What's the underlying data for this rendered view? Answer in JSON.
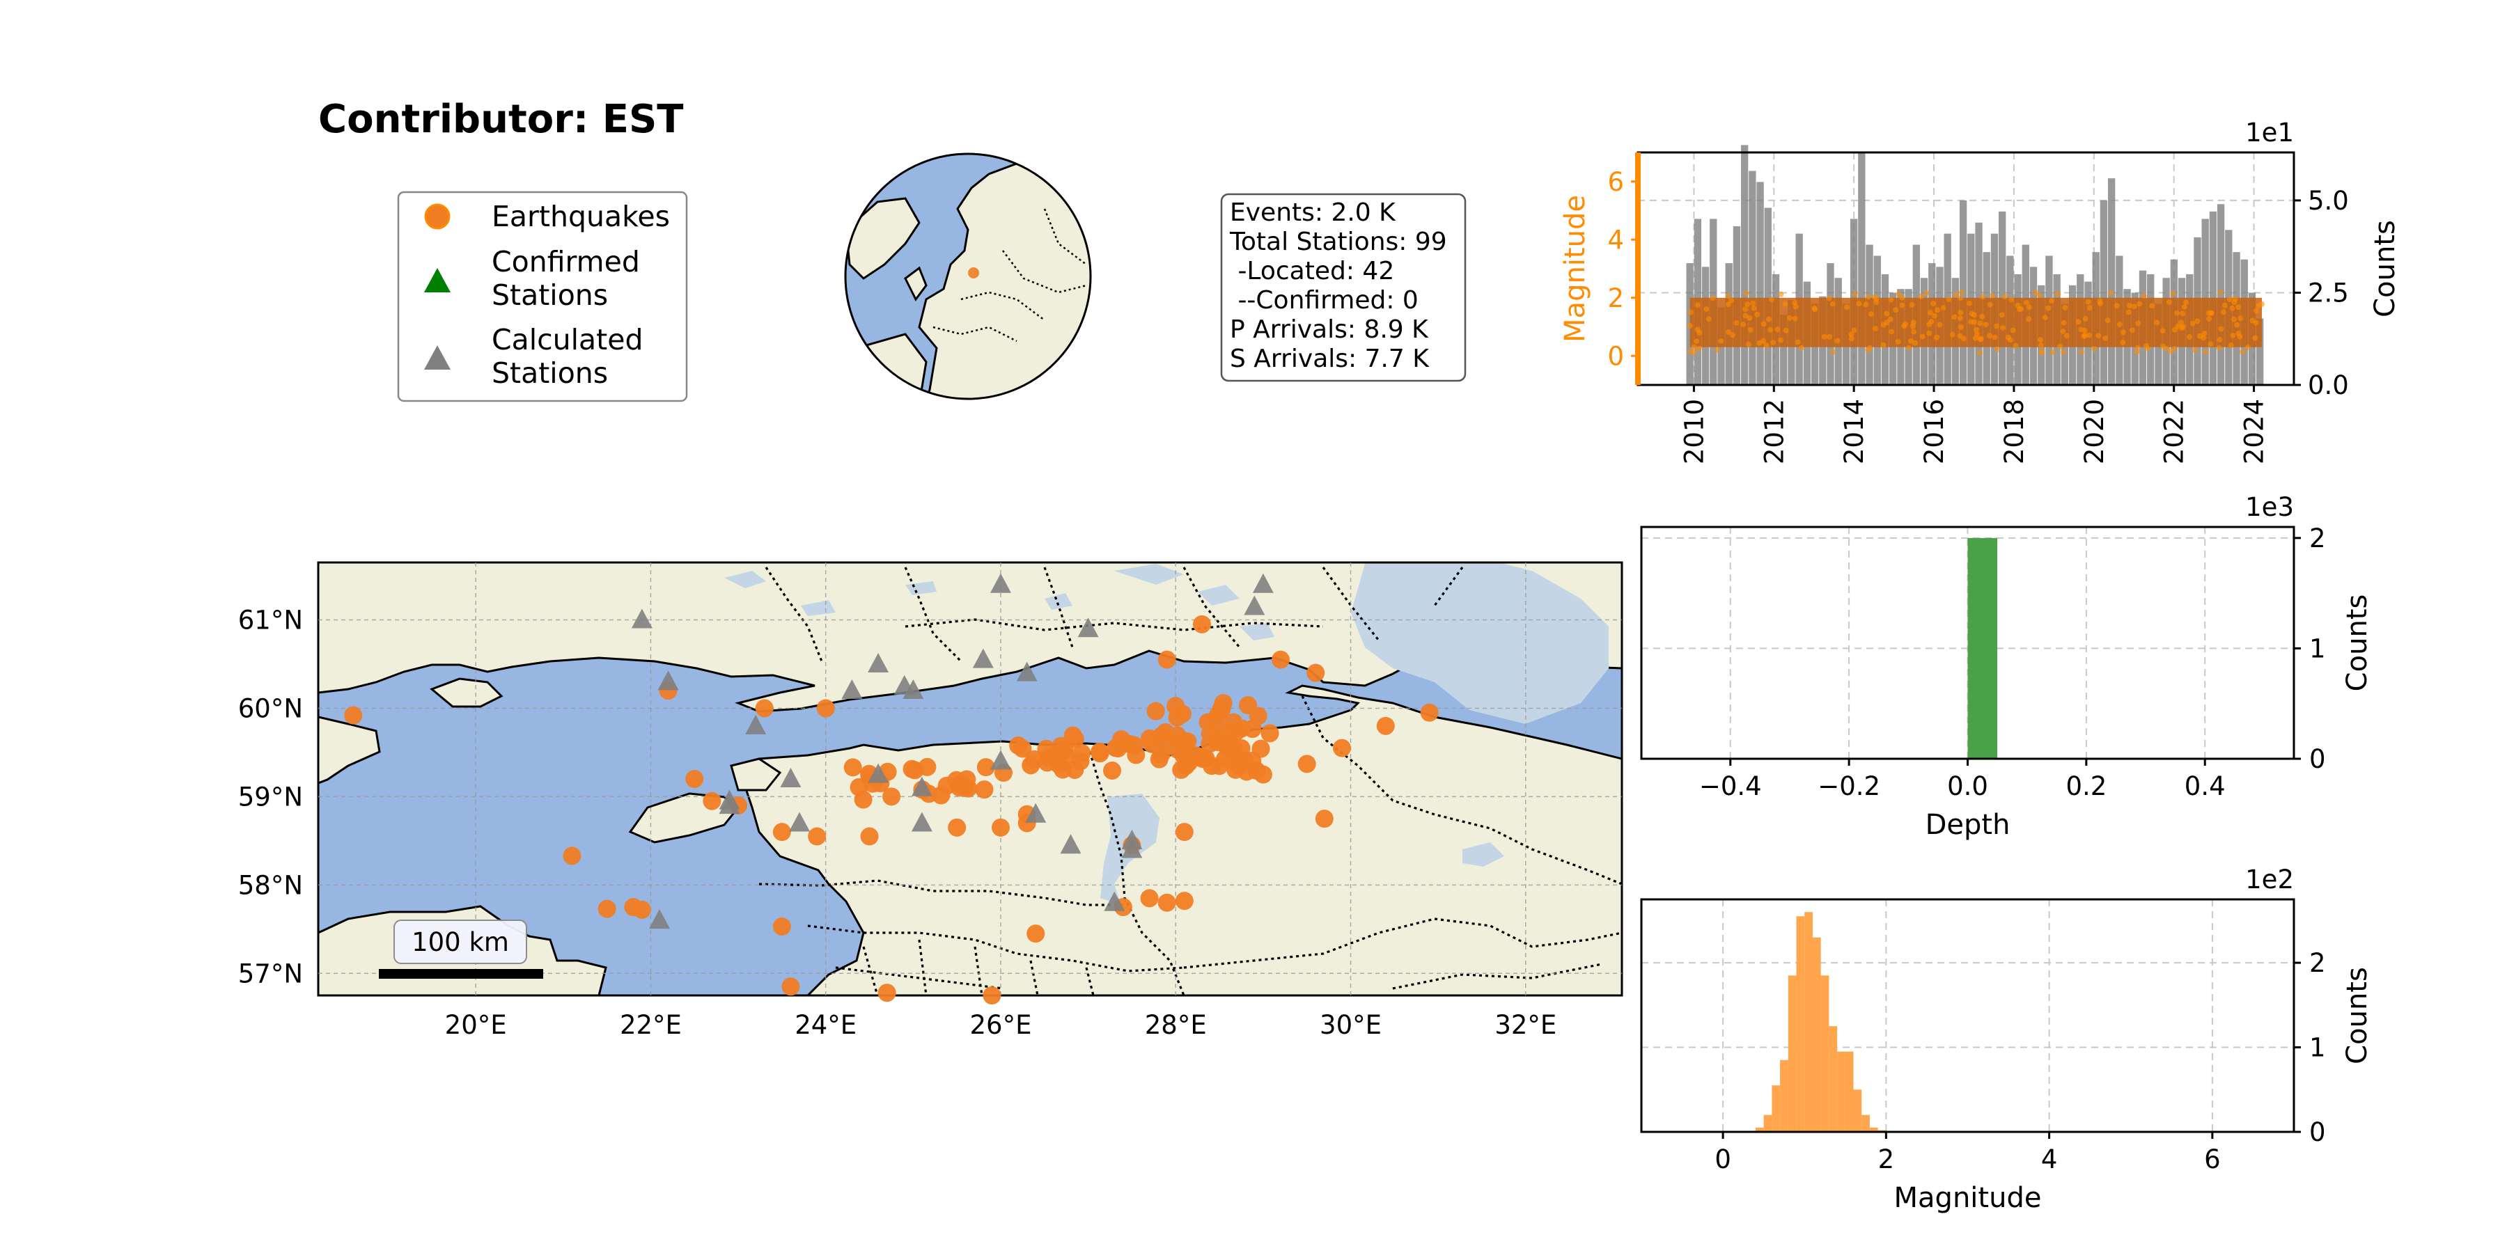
{
  "title": "Contributor: EST",
  "legend": {
    "earthquakes": [
      "Earthquakes"
    ],
    "confirmed": [
      "Confirmed",
      "Stations"
    ],
    "calculated": [
      "Calculated",
      "Stations"
    ]
  },
  "info_box": {
    "lines": [
      "Events: 2.0 K",
      "Total Stations: 99",
      " -Located: 42",
      " --Confirmed: 0",
      "P Arrivals: 8.9 K",
      "S Arrivals: 7.7 K"
    ]
  },
  "map": {
    "lon_ticks": [
      "20°E",
      "22°E",
      "24°E",
      "26°E",
      "28°E",
      "30°E",
      "32°E"
    ],
    "lat_ticks": [
      "61°N",
      "60°N",
      "59°N",
      "58°N",
      "57°N"
    ],
    "lon_range": [
      18.2,
      33.1
    ],
    "lat_range": [
      56.75,
      61.65
    ],
    "scalebar_label": "100 km",
    "colors": {
      "ocean": "#97b6e1",
      "land": "#efefdb",
      "lake": "#c4d6e6",
      "event": "#f07d24",
      "station": "#808080",
      "confirmed": "#008000"
    }
  },
  "chart_data": [
    {
      "type": "bar",
      "name": "timeline",
      "x_ticks": [
        "2010",
        "2012",
        "2014",
        "2016",
        "2018",
        "2020",
        "2022",
        "2024"
      ],
      "x_range": [
        2008.6,
        2025.0
      ],
      "ylabel_left": "Magnitude",
      "ylabel_right": "Counts",
      "left_ylim": [
        -1,
        7
      ],
      "left_ticks": [
        "0",
        "2",
        "4",
        "6"
      ],
      "right_ylim": [
        0,
        6.3
      ],
      "right_ticks": [
        "0.0",
        "2.5",
        "5.0"
      ],
      "right_offset": "1e1",
      "magnitude_band": [
        0.3,
        2.0
      ],
      "bar_start": 2009.9,
      "bar_width": 0.18,
      "values": [
        3.3,
        4.5,
        3.2,
        4.5,
        2.1,
        3.3,
        4.3,
        6.5,
        5.8,
        5.5,
        4.8,
        3.0,
        1.9,
        2.3,
        4.1,
        2.8,
        2.2,
        2.4,
        3.3,
        2.9,
        2.2,
        4.5,
        6.3,
        3.8,
        3.5,
        3.0,
        2.5,
        2.6,
        2.6,
        3.8,
        2.9,
        3.3,
        3.2,
        4.1,
        2.9,
        5.0,
        4.1,
        4.4,
        3.6,
        4.1,
        4.7,
        3.5,
        3.0,
        3.8,
        3.2,
        2.7,
        3.5,
        3.0,
        2.2,
        2.7,
        3.0,
        2.8,
        3.6,
        5.0,
        5.6,
        3.5,
        2.6,
        2.5,
        3.1,
        3.0,
        2.2,
        2.9,
        3.4,
        2.9,
        3.0,
        4.0,
        4.5,
        4.7,
        4.9,
        4.2,
        3.6,
        3.4,
        2.5,
        1.8
      ],
      "colors": {
        "bars": "#808080",
        "magnitude": "#ff8c00",
        "band": "#c7600d"
      }
    },
    {
      "type": "bar",
      "name": "depth_histogram",
      "xlabel": "Depth",
      "ylabel": "Counts",
      "x_range": [
        -0.55,
        0.55
      ],
      "x_ticks": [
        "−0.4",
        "−0.2",
        "0.0",
        "0.2",
        "0.4"
      ],
      "y_range": [
        0,
        2.1
      ],
      "y_ticks": [
        "0",
        "1",
        "2"
      ],
      "y_offset": "1e3",
      "bins": [
        {
          "x0": 0.0,
          "x1": 0.05,
          "count": 2.0
        }
      ],
      "colors": {
        "bars": "#4aa14a"
      }
    },
    {
      "type": "bar",
      "name": "magnitude_histogram",
      "xlabel": "Magnitude",
      "ylabel": "Counts",
      "x_range": [
        -1.0,
        7.0
      ],
      "x_ticks": [
        "0",
        "2",
        "4",
        "6"
      ],
      "y_range": [
        0,
        2.75
      ],
      "y_ticks": [
        "0",
        "1",
        "2"
      ],
      "y_offset": "1e2",
      "bins": [
        {
          "x0": 0.4,
          "x1": 0.5,
          "count": 0.05
        },
        {
          "x0": 0.5,
          "x1": 0.6,
          "count": 0.2
        },
        {
          "x0": 0.6,
          "x1": 0.7,
          "count": 0.55
        },
        {
          "x0": 0.7,
          "x1": 0.8,
          "count": 0.85
        },
        {
          "x0": 0.8,
          "x1": 0.9,
          "count": 1.85
        },
        {
          "x0": 0.9,
          "x1": 1.0,
          "count": 2.55
        },
        {
          "x0": 1.0,
          "x1": 1.1,
          "count": 2.6
        },
        {
          "x0": 1.1,
          "x1": 1.2,
          "count": 2.3
        },
        {
          "x0": 1.2,
          "x1": 1.3,
          "count": 1.85
        },
        {
          "x0": 1.3,
          "x1": 1.4,
          "count": 1.25
        },
        {
          "x0": 1.4,
          "x1": 1.5,
          "count": 0.95
        },
        {
          "x0": 1.5,
          "x1": 1.6,
          "count": 0.95
        },
        {
          "x0": 1.6,
          "x1": 1.7,
          "count": 0.5
        },
        {
          "x0": 1.7,
          "x1": 1.8,
          "count": 0.2
        },
        {
          "x0": 1.8,
          "x1": 1.9,
          "count": 0.05
        },
        {
          "x0": 1.9,
          "x1": 2.0,
          "count": 0.02
        }
      ],
      "colors": {
        "bars": "#ffa64d"
      }
    }
  ]
}
